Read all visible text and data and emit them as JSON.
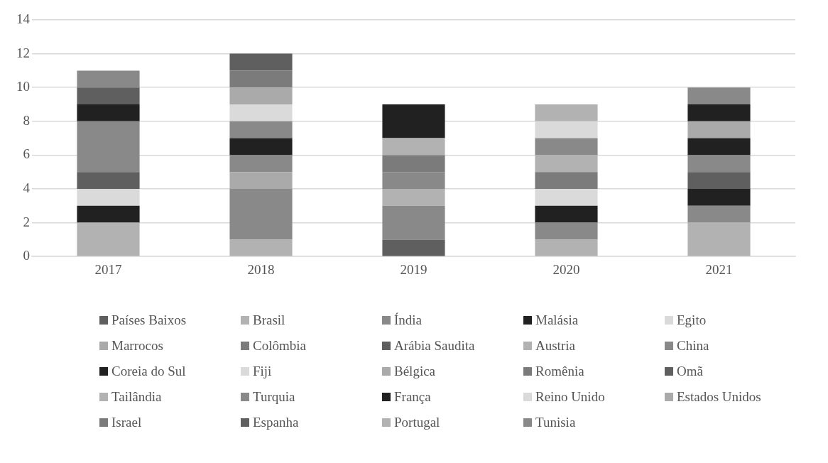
{
  "chart_data": {
    "type": "bar",
    "stacked": true,
    "categories": [
      "2017",
      "2018",
      "2019",
      "2020",
      "2021"
    ],
    "ylim": [
      0,
      14
    ],
    "yticks": [
      0,
      2,
      4,
      6,
      8,
      10,
      12,
      14
    ],
    "grid": "y",
    "legend": "bottom",
    "series": [
      {
        "name": "Países Baixos",
        "color": "#5f5f5f",
        "values": [
          0,
          0,
          1,
          0,
          0
        ]
      },
      {
        "name": "Brasil",
        "color": "#b2b2b2",
        "values": [
          2,
          1,
          0,
          1,
          2
        ]
      },
      {
        "name": "Índia",
        "color": "#898989",
        "values": [
          0,
          3,
          2,
          1,
          1
        ]
      },
      {
        "name": "Malásia",
        "color": "#212121",
        "values": [
          1,
          0,
          0,
          1,
          1
        ]
      },
      {
        "name": "Egito",
        "color": "#dadada",
        "values": [
          1,
          0,
          0,
          1,
          0
        ]
      },
      {
        "name": "Marrocos",
        "color": "#aaaaaa",
        "values": [
          0,
          1,
          0,
          0,
          0
        ]
      },
      {
        "name": "Colômbia",
        "color": "#7b7b7b",
        "values": [
          0,
          0,
          0,
          1,
          0
        ]
      },
      {
        "name": "Arábia Saudita",
        "color": "#5f5f5f",
        "values": [
          1,
          0,
          0,
          0,
          1
        ]
      },
      {
        "name": "Austria",
        "color": "#b2b2b2",
        "values": [
          0,
          0,
          1,
          1,
          0
        ]
      },
      {
        "name": "China",
        "color": "#898989",
        "values": [
          3,
          1,
          1,
          1,
          1
        ]
      },
      {
        "name": "Coreia do Sul",
        "color": "#212121",
        "values": [
          1,
          1,
          0,
          0,
          1
        ]
      },
      {
        "name": "Fiji",
        "color": "#dadada",
        "values": [
          0,
          0,
          0,
          1,
          0
        ]
      },
      {
        "name": "Bélgica",
        "color": "#aaaaaa",
        "values": [
          0,
          0,
          0,
          0,
          1
        ]
      },
      {
        "name": "Romênia",
        "color": "#7b7b7b",
        "values": [
          0,
          0,
          1,
          0,
          0
        ]
      },
      {
        "name": "Omã",
        "color": "#5f5f5f",
        "values": [
          1,
          0,
          0,
          0,
          0
        ]
      },
      {
        "name": "Tailândia",
        "color": "#b2b2b2",
        "values": [
          0,
          0,
          1,
          1,
          0
        ]
      },
      {
        "name": "Turquia",
        "color": "#898989",
        "values": [
          1,
          1,
          0,
          0,
          0
        ]
      },
      {
        "name": "França",
        "color": "#212121",
        "values": [
          0,
          0,
          2,
          0,
          1
        ]
      },
      {
        "name": "Reino Unido",
        "color": "#dadada",
        "values": [
          0,
          1,
          0,
          0,
          0
        ]
      },
      {
        "name": "Estados Unidos",
        "color": "#aaaaaa",
        "values": [
          0,
          1,
          0,
          0,
          0
        ]
      },
      {
        "name": "Israel",
        "color": "#7b7b7b",
        "values": [
          0,
          1,
          0,
          0,
          0
        ]
      },
      {
        "name": "Espanha",
        "color": "#5f5f5f",
        "values": [
          0,
          1,
          0,
          0,
          0
        ]
      },
      {
        "name": "Portugal",
        "color": "#b2b2b2",
        "values": [
          0,
          0,
          0,
          0,
          0
        ]
      },
      {
        "name": "Tunisia",
        "color": "#898989",
        "values": [
          0,
          0,
          0,
          0,
          1
        ]
      }
    ]
  }
}
